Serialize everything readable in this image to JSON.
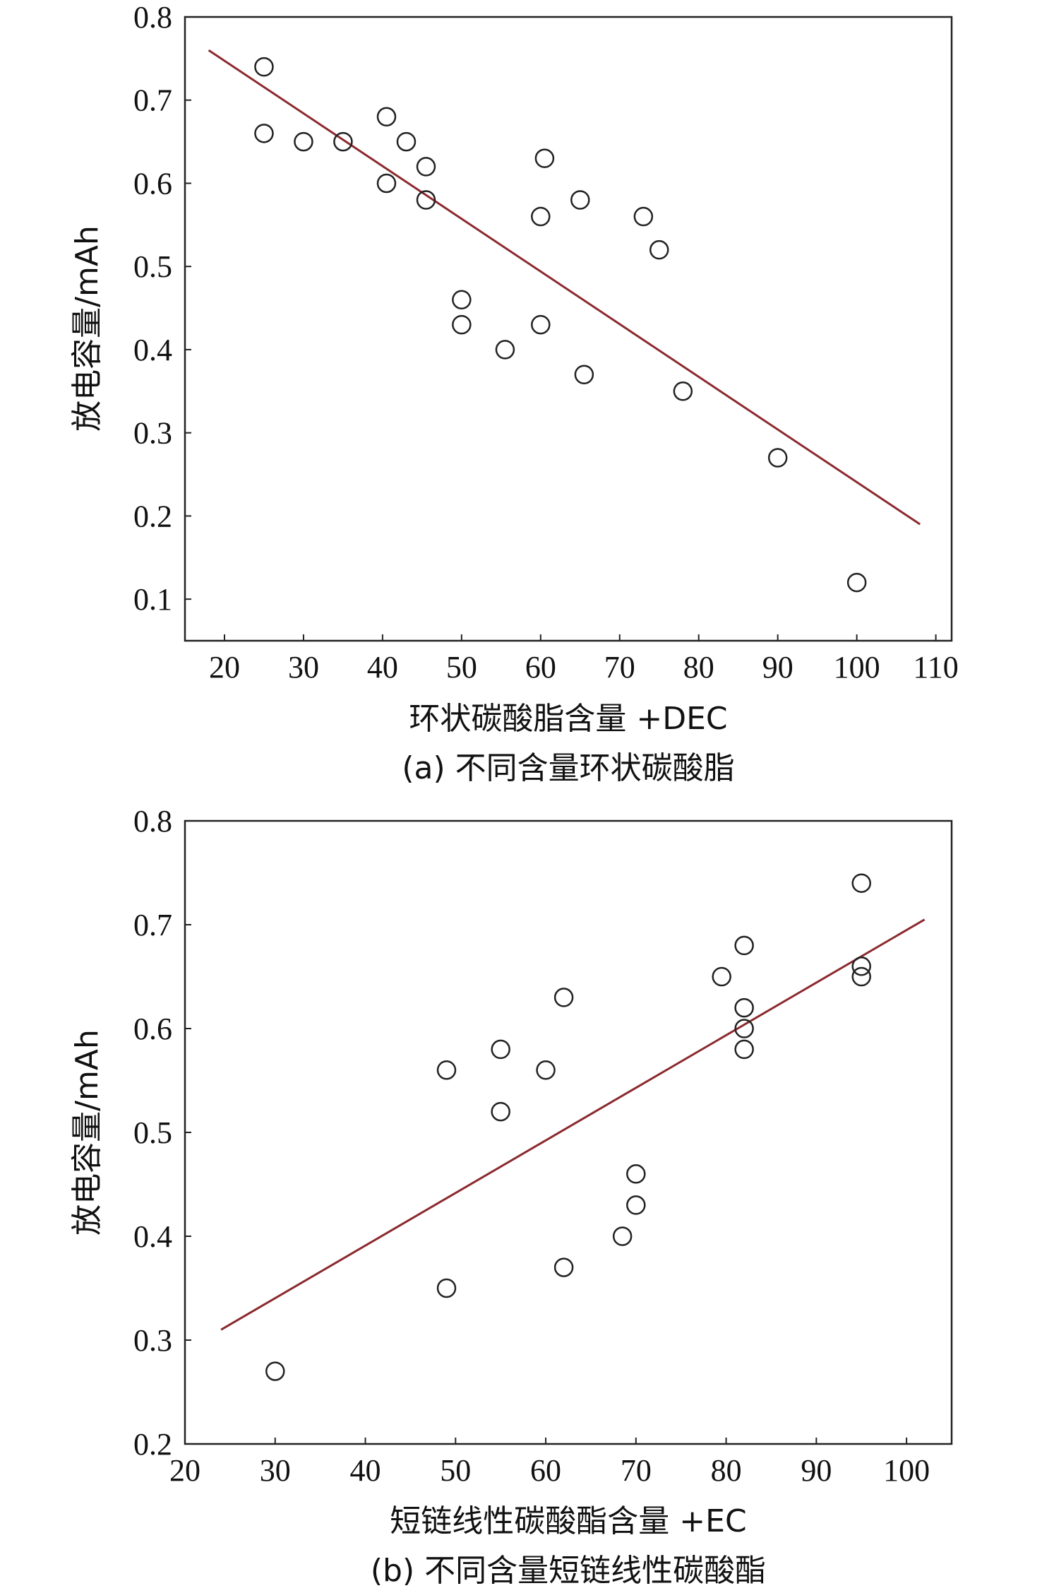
{
  "colors": {
    "fit_line": "#8B2A2E",
    "marker_stroke": "#222222",
    "axis": "#222222"
  },
  "chart_data": [
    {
      "type": "scatter",
      "caption": "(a) 不同含量环状碳酸脂",
      "xlabel": "环状碳酸脂含量 +DEC",
      "ylabel": "放电容量/mAh",
      "xlim": [
        15,
        112
      ],
      "ylim": [
        0.05,
        0.8
      ],
      "xticks": [
        20,
        30,
        40,
        50,
        60,
        70,
        80,
        90,
        100,
        110
      ],
      "yticks": [
        0.1,
        0.2,
        0.3,
        0.4,
        0.5,
        0.6,
        0.7,
        0.8
      ],
      "grid": false,
      "legend": "none",
      "points": [
        {
          "x": 25,
          "y": 0.74
        },
        {
          "x": 25,
          "y": 0.66
        },
        {
          "x": 30,
          "y": 0.65
        },
        {
          "x": 35,
          "y": 0.65
        },
        {
          "x": 40.5,
          "y": 0.68
        },
        {
          "x": 40.5,
          "y": 0.6
        },
        {
          "x": 43,
          "y": 0.65
        },
        {
          "x": 45.5,
          "y": 0.62
        },
        {
          "x": 45.5,
          "y": 0.58
        },
        {
          "x": 50,
          "y": 0.46
        },
        {
          "x": 50,
          "y": 0.43
        },
        {
          "x": 55.5,
          "y": 0.4
        },
        {
          "x": 60,
          "y": 0.56
        },
        {
          "x": 60.5,
          "y": 0.63
        },
        {
          "x": 60,
          "y": 0.43
        },
        {
          "x": 65,
          "y": 0.58
        },
        {
          "x": 65.5,
          "y": 0.37
        },
        {
          "x": 73,
          "y": 0.56
        },
        {
          "x": 75,
          "y": 0.52
        },
        {
          "x": 78,
          "y": 0.35
        },
        {
          "x": 90,
          "y": 0.27
        },
        {
          "x": 100,
          "y": 0.12
        }
      ],
      "fit_line": [
        {
          "x": 18,
          "y": 0.76
        },
        {
          "x": 108,
          "y": 0.19
        }
      ]
    },
    {
      "type": "scatter",
      "caption": "(b) 不同含量短链线性碳酸酯",
      "xlabel": "短链线性碳酸酯含量 +EC",
      "ylabel": "放电容量/mAh",
      "xlim": [
        20,
        105
      ],
      "ylim": [
        0.2,
        0.8
      ],
      "xticks": [
        20,
        30,
        40,
        50,
        60,
        70,
        80,
        90,
        100
      ],
      "yticks": [
        0.2,
        0.3,
        0.4,
        0.5,
        0.6,
        0.7,
        0.8
      ],
      "grid": false,
      "legend": "none",
      "points": [
        {
          "x": 30,
          "y": 0.27
        },
        {
          "x": 49,
          "y": 0.56
        },
        {
          "x": 49,
          "y": 0.35
        },
        {
          "x": 55,
          "y": 0.58
        },
        {
          "x": 55,
          "y": 0.52
        },
        {
          "x": 60,
          "y": 0.56
        },
        {
          "x": 62,
          "y": 0.63
        },
        {
          "x": 62,
          "y": 0.37
        },
        {
          "x": 68.5,
          "y": 0.4
        },
        {
          "x": 70,
          "y": 0.46
        },
        {
          "x": 70,
          "y": 0.43
        },
        {
          "x": 79.5,
          "y": 0.65
        },
        {
          "x": 82,
          "y": 0.68
        },
        {
          "x": 82,
          "y": 0.62
        },
        {
          "x": 82,
          "y": 0.6
        },
        {
          "x": 82,
          "y": 0.58
        },
        {
          "x": 95,
          "y": 0.74
        },
        {
          "x": 95,
          "y": 0.66
        },
        {
          "x": 95,
          "y": 0.65
        }
      ],
      "fit_line": [
        {
          "x": 24,
          "y": 0.31
        },
        {
          "x": 102,
          "y": 0.705
        }
      ]
    }
  ]
}
